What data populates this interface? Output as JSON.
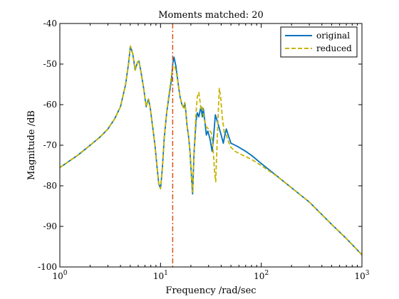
{
  "chart_data": {
    "type": "line",
    "title": "Moments matched: 20",
    "xlabel": "Frequency /rad/sec",
    "ylabel": "Magnitude /dB",
    "xscale": "log",
    "xlim": [
      1,
      1000
    ],
    "ylim": [
      -100,
      -40
    ],
    "grid": false,
    "legend_position": "top-right",
    "xticks": [
      {
        "value": 1,
        "base": "10",
        "exp": "0"
      },
      {
        "value": 10,
        "base": "10",
        "exp": "1"
      },
      {
        "value": 100,
        "base": "10",
        "exp": "2"
      },
      {
        "value": 1000,
        "base": "10",
        "exp": "3"
      }
    ],
    "yticks": [
      {
        "value": -40,
        "label": "-40"
      },
      {
        "value": -50,
        "label": "-50"
      },
      {
        "value": -60,
        "label": "-60"
      },
      {
        "value": -70,
        "label": "-70"
      },
      {
        "value": -80,
        "label": "-80"
      },
      {
        "value": -90,
        "label": "-90"
      },
      {
        "value": -100,
        "label": "-100"
      }
    ],
    "vline": {
      "x": 13.2,
      "color": "#d95319"
    },
    "series": [
      {
        "name": "original",
        "color": "#0072bd",
        "dash": "solid",
        "points": [
          [
            1,
            -75.5
          ],
          [
            1.5,
            -72.5
          ],
          [
            2,
            -70
          ],
          [
            2.5,
            -68
          ],
          [
            3,
            -66
          ],
          [
            3.5,
            -63.5
          ],
          [
            4,
            -60.5
          ],
          [
            4.5,
            -55
          ],
          [
            4.8,
            -50
          ],
          [
            5.02,
            -45.6
          ],
          [
            5.3,
            -47.5
          ],
          [
            5.6,
            -51.5
          ],
          [
            5.9,
            -49.5
          ],
          [
            6.1,
            -49.2
          ],
          [
            6.4,
            -52
          ],
          [
            6.8,
            -56
          ],
          [
            7.2,
            -60.5
          ],
          [
            7.6,
            -58.6
          ],
          [
            7.9,
            -60.8
          ],
          [
            8.3,
            -65
          ],
          [
            8.8,
            -70
          ],
          [
            9.2,
            -75
          ],
          [
            9.6,
            -79.5
          ],
          [
            10,
            -80.7
          ],
          [
            10.4,
            -76
          ],
          [
            10.9,
            -68
          ],
          [
            11.5,
            -62
          ],
          [
            12.2,
            -57.5
          ],
          [
            12.8,
            -54
          ],
          [
            13.2,
            -50
          ],
          [
            13.6,
            -48.3
          ],
          [
            14.2,
            -50.5
          ],
          [
            15,
            -55
          ],
          [
            15.6,
            -58
          ],
          [
            16.3,
            -60
          ],
          [
            17,
            -60.8
          ],
          [
            17.4,
            -59.5
          ],
          [
            17.8,
            -61.5
          ],
          [
            18.3,
            -65
          ],
          [
            19,
            -68
          ],
          [
            19.6,
            -71.5
          ],
          [
            20.3,
            -78
          ],
          [
            20.8,
            -82
          ],
          [
            21.5,
            -72
          ],
          [
            22.5,
            -64
          ],
          [
            23.2,
            -62
          ],
          [
            24,
            -63
          ],
          [
            25.2,
            -60.5
          ],
          [
            26,
            -63
          ],
          [
            26.6,
            -61
          ],
          [
            27.5,
            -64
          ],
          [
            28.5,
            -67.5
          ],
          [
            29.5,
            -66.5
          ],
          [
            31,
            -68.5
          ],
          [
            32.5,
            -71.5
          ],
          [
            33.5,
            -68.5
          ],
          [
            35,
            -62.5
          ],
          [
            36.5,
            -64
          ],
          [
            38,
            -65.5
          ],
          [
            40,
            -67.5
          ],
          [
            42,
            -69.5
          ],
          [
            43.5,
            -67.5
          ],
          [
            45,
            -66
          ],
          [
            47,
            -67.5
          ],
          [
            50,
            -69.5
          ],
          [
            55,
            -70
          ],
          [
            60,
            -70.5
          ],
          [
            70,
            -71.5
          ],
          [
            80,
            -72.5
          ],
          [
            100,
            -74.5
          ],
          [
            150,
            -78
          ],
          [
            200,
            -80.5
          ],
          [
            300,
            -84
          ],
          [
            500,
            -89.5
          ],
          [
            700,
            -93
          ],
          [
            1000,
            -97
          ]
        ]
      },
      {
        "name": "reduced",
        "color": "#c8b400",
        "dash": "dashed",
        "points": [
          [
            1,
            -75.5
          ],
          [
            1.5,
            -72.5
          ],
          [
            2,
            -70
          ],
          [
            2.5,
            -68
          ],
          [
            3,
            -66
          ],
          [
            3.5,
            -63.5
          ],
          [
            4,
            -60.5
          ],
          [
            4.5,
            -55
          ],
          [
            4.8,
            -50
          ],
          [
            5.02,
            -45.6
          ],
          [
            5.3,
            -47.5
          ],
          [
            5.6,
            -51.5
          ],
          [
            5.9,
            -49.5
          ],
          [
            6.1,
            -49.2
          ],
          [
            6.4,
            -52
          ],
          [
            6.8,
            -56
          ],
          [
            7.2,
            -60.5
          ],
          [
            7.6,
            -58.6
          ],
          [
            7.9,
            -60.8
          ],
          [
            8.3,
            -65
          ],
          [
            8.8,
            -70
          ],
          [
            9.2,
            -75
          ],
          [
            9.6,
            -79.5
          ],
          [
            10,
            -80.7
          ],
          [
            10.4,
            -76
          ],
          [
            10.9,
            -68
          ],
          [
            11.5,
            -62
          ],
          [
            12.2,
            -57
          ],
          [
            12.8,
            -53
          ],
          [
            13.2,
            -50.5
          ],
          [
            13.6,
            -50.3
          ],
          [
            14.2,
            -51.5
          ],
          [
            15,
            -55
          ],
          [
            15.6,
            -58
          ],
          [
            16.3,
            -60
          ],
          [
            17,
            -60.8
          ],
          [
            17.4,
            -59.5
          ],
          [
            17.8,
            -61.5
          ],
          [
            18.3,
            -65
          ],
          [
            19,
            -68
          ],
          [
            19.6,
            -71.5
          ],
          [
            20.3,
            -78
          ],
          [
            20.8,
            -81.5
          ],
          [
            21.5,
            -72
          ],
          [
            22.5,
            -62
          ],
          [
            23.2,
            -58
          ],
          [
            24,
            -57
          ],
          [
            25.2,
            -61
          ],
          [
            26,
            -60.5
          ],
          [
            27,
            -63.5
          ],
          [
            28.5,
            -65.5
          ],
          [
            30,
            -66
          ],
          [
            32,
            -67
          ],
          [
            33.5,
            -72
          ],
          [
            34.5,
            -77
          ],
          [
            35.3,
            -79
          ],
          [
            36,
            -73
          ],
          [
            37,
            -65
          ],
          [
            38.3,
            -56
          ],
          [
            39.5,
            -58
          ],
          [
            41,
            -63
          ],
          [
            43,
            -67
          ],
          [
            45,
            -67.5
          ],
          [
            47,
            -69
          ],
          [
            50,
            -70.5
          ],
          [
            55,
            -71.5
          ],
          [
            60,
            -72
          ],
          [
            70,
            -72.8
          ],
          [
            80,
            -73.5
          ],
          [
            100,
            -75
          ],
          [
            150,
            -78
          ],
          [
            200,
            -80.5
          ],
          [
            300,
            -84
          ],
          [
            500,
            -89.5
          ],
          [
            700,
            -93
          ],
          [
            1000,
            -97
          ]
        ]
      }
    ]
  }
}
